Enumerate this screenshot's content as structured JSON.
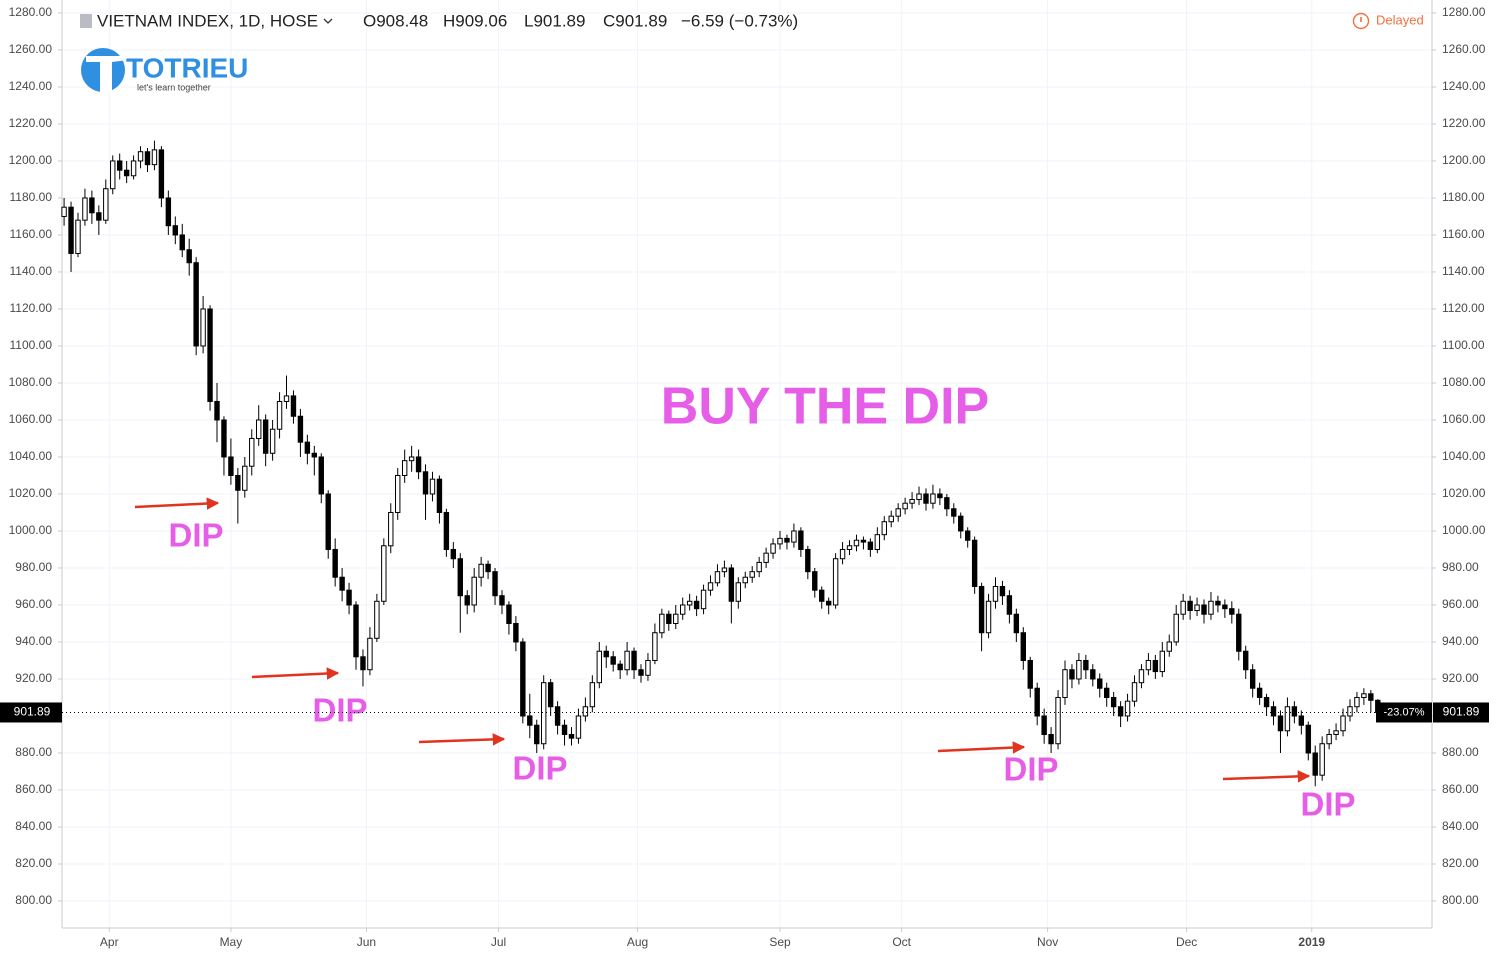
{
  "chart_data": {
    "type": "candlestick",
    "symbol": "VIETNAM INDEX, 1D, HOSE",
    "ohlc_legend": [
      "O908.48",
      "H909.06",
      "L901.89",
      "C901.89",
      "−6.59 (−0.73%)"
    ],
    "status": "Delayed",
    "logo": {
      "name": "TOTRIEU",
      "tagline": "let's learn together"
    },
    "title_annotation": "BUY THE DIP",
    "annotations": [
      "DIP",
      "DIP",
      "DIP",
      "DIP",
      "DIP"
    ],
    "last_price": {
      "value": 901.89,
      "label": "901.89"
    },
    "change_label": "-23.07%",
    "colors": {
      "up_body": "#ffffff",
      "down_body": "#000000",
      "wick": "#000000",
      "grid": "#f0f3fa",
      "arrow": "#e0341e"
    },
    "grid": true,
    "ylim": [
      785.4,
      1287
    ],
    "yticks": [
      {
        "value": 800,
        "label": "800.00"
      },
      {
        "value": 820,
        "label": "820.00"
      },
      {
        "value": 840,
        "label": "840.00"
      },
      {
        "value": 860,
        "label": "860.00"
      },
      {
        "value": 880,
        "label": "880.00"
      },
      {
        "value": 900,
        "label": "900.00"
      },
      {
        "value": 920,
        "label": "920.00"
      },
      {
        "value": 940,
        "label": "940.00"
      },
      {
        "value": 960,
        "label": "960.00"
      },
      {
        "value": 980,
        "label": "980.00"
      },
      {
        "value": 1000,
        "label": "1000.00"
      },
      {
        "value": 1020,
        "label": "1020.00"
      },
      {
        "value": 1040,
        "label": "1040.00"
      },
      {
        "value": 1060,
        "label": "1060.00"
      },
      {
        "value": 1080,
        "label": "1080.00"
      },
      {
        "value": 1100,
        "label": "1100.00"
      },
      {
        "value": 1120,
        "label": "1120.00"
      },
      {
        "value": 1140,
        "label": "1140.00"
      },
      {
        "value": 1160,
        "label": "1160.00"
      },
      {
        "value": 1180,
        "label": "1180.00"
      },
      {
        "value": 1200,
        "label": "1200.00"
      },
      {
        "value": 1220,
        "label": "1220.00"
      },
      {
        "value": 1240,
        "label": "1240.00"
      },
      {
        "value": 1260,
        "label": "1260.00"
      },
      {
        "value": 1280,
        "label": "1280.00"
      }
    ],
    "xlim": [
      -0.3,
      196.8
    ],
    "xticks": [
      {
        "value": 6.5,
        "label": "Apr"
      },
      {
        "value": 24,
        "label": "May"
      },
      {
        "value": 43.5,
        "label": "Jun"
      },
      {
        "value": 62.5,
        "label": "Jul"
      },
      {
        "value": 82.5,
        "label": "Aug"
      },
      {
        "value": 103,
        "label": "Sep"
      },
      {
        "value": 120.5,
        "label": "Oct"
      },
      {
        "value": 141.5,
        "label": "Nov"
      },
      {
        "value": 161.5,
        "label": "Dec"
      },
      {
        "value": 179.5,
        "label": "2019"
      }
    ],
    "ohlc": [
      [
        1170,
        1180,
        1165,
        1175
      ],
      [
        1175,
        1178,
        1140,
        1150
      ],
      [
        1150,
        1172,
        1148,
        1168
      ],
      [
        1168,
        1185,
        1165,
        1180
      ],
      [
        1180,
        1184,
        1166,
        1172
      ],
      [
        1172,
        1176,
        1160,
        1168
      ],
      [
        1168,
        1190,
        1166,
        1185
      ],
      [
        1185,
        1203,
        1182,
        1200
      ],
      [
        1200,
        1204,
        1190,
        1195
      ],
      [
        1195,
        1200,
        1188,
        1192
      ],
      [
        1192,
        1203,
        1190,
        1200
      ],
      [
        1200,
        1208,
        1196,
        1205
      ],
      [
        1205,
        1207,
        1194,
        1198
      ],
      [
        1198,
        1211,
        1195,
        1206
      ],
      [
        1206,
        1208,
        1175,
        1180
      ],
      [
        1180,
        1184,
        1160,
        1165
      ],
      [
        1165,
        1170,
        1155,
        1160
      ],
      [
        1160,
        1166,
        1148,
        1152
      ],
      [
        1152,
        1158,
        1138,
        1145
      ],
      [
        1145,
        1148,
        1095,
        1100
      ],
      [
        1100,
        1127,
        1096,
        1120
      ],
      [
        1120,
        1122,
        1065,
        1070
      ],
      [
        1070,
        1080,
        1048,
        1060
      ],
      [
        1060,
        1062,
        1030,
        1040
      ],
      [
        1040,
        1050,
        1025,
        1030
      ],
      [
        1030,
        1034,
        1004,
        1022
      ],
      [
        1022,
        1040,
        1018,
        1035
      ],
      [
        1035,
        1055,
        1030,
        1050
      ],
      [
        1050,
        1068,
        1046,
        1060
      ],
      [
        1060,
        1063,
        1035,
        1042
      ],
      [
        1042,
        1060,
        1038,
        1055
      ],
      [
        1055,
        1075,
        1050,
        1070
      ],
      [
        1070,
        1084,
        1066,
        1073
      ],
      [
        1073,
        1076,
        1058,
        1062
      ],
      [
        1062,
        1066,
        1040,
        1048
      ],
      [
        1048,
        1052,
        1036,
        1042
      ],
      [
        1042,
        1046,
        1030,
        1040
      ],
      [
        1040,
        1042,
        1015,
        1020
      ],
      [
        1020,
        1022,
        985,
        990
      ],
      [
        990,
        996,
        970,
        975
      ],
      [
        975,
        980,
        962,
        968
      ],
      [
        968,
        972,
        955,
        960
      ],
      [
        960,
        962,
        925,
        932
      ],
      [
        932,
        936,
        916,
        925
      ],
      [
        925,
        948,
        922,
        942
      ],
      [
        942,
        966,
        940,
        962
      ],
      [
        962,
        996,
        960,
        992
      ],
      [
        992,
        1015,
        988,
        1010
      ],
      [
        1010,
        1034,
        1006,
        1030
      ],
      [
        1030,
        1044,
        1026,
        1038
      ],
      [
        1038,
        1046,
        1032,
        1040
      ],
      [
        1040,
        1044,
        1028,
        1032
      ],
      [
        1032,
        1036,
        1006,
        1020
      ],
      [
        1020,
        1032,
        1016,
        1028
      ],
      [
        1028,
        1030,
        1004,
        1010
      ],
      [
        1010,
        1012,
        986,
        990
      ],
      [
        990,
        994,
        980,
        985
      ],
      [
        985,
        988,
        945,
        965
      ],
      [
        965,
        968,
        955,
        960
      ],
      [
        960,
        980,
        956,
        975
      ],
      [
        975,
        986,
        970,
        982
      ],
      [
        982,
        984,
        974,
        978
      ],
      [
        978,
        980,
        960,
        965
      ],
      [
        965,
        968,
        955,
        960
      ],
      [
        960,
        962,
        944,
        950
      ],
      [
        950,
        954,
        935,
        940
      ],
      [
        940,
        942,
        896,
        900
      ],
      [
        900,
        912,
        888,
        895
      ],
      [
        895,
        898,
        880,
        885
      ],
      [
        885,
        922,
        882,
        918
      ],
      [
        918,
        920,
        900,
        905
      ],
      [
        905,
        908,
        890,
        895
      ],
      [
        895,
        898,
        884,
        890
      ],
      [
        890,
        894,
        884,
        888
      ],
      [
        888,
        904,
        885,
        900
      ],
      [
        900,
        910,
        897,
        905
      ],
      [
        905,
        922,
        902,
        918
      ],
      [
        918,
        940,
        915,
        935
      ],
      [
        935,
        938,
        926,
        932
      ],
      [
        932,
        935,
        924,
        928
      ],
      [
        928,
        930,
        920,
        925
      ],
      [
        925,
        940,
        922,
        935
      ],
      [
        935,
        937,
        920,
        925
      ],
      [
        925,
        928,
        918,
        922
      ],
      [
        922,
        934,
        919,
        930
      ],
      [
        930,
        950,
        928,
        945
      ],
      [
        945,
        958,
        942,
        955
      ],
      [
        955,
        957,
        946,
        950
      ],
      [
        950,
        960,
        947,
        955
      ],
      [
        955,
        964,
        952,
        960
      ],
      [
        960,
        966,
        957,
        962
      ],
      [
        962,
        965,
        954,
        958
      ],
      [
        958,
        971,
        955,
        968
      ],
      [
        968,
        976,
        965,
        972
      ],
      [
        972,
        982,
        970,
        978
      ],
      [
        978,
        984,
        975,
        980
      ],
      [
        980,
        982,
        950,
        962
      ],
      [
        962,
        975,
        958,
        972
      ],
      [
        972,
        978,
        969,
        975
      ],
      [
        975,
        981,
        972,
        978
      ],
      [
        978,
        986,
        975,
        983
      ],
      [
        983,
        991,
        980,
        988
      ],
      [
        988,
        996,
        985,
        993
      ],
      [
        993,
        1000,
        990,
        996
      ],
      [
        996,
        998,
        990,
        994
      ],
      [
        994,
        1004,
        991,
        1000
      ],
      [
        1000,
        1002,
        986,
        990
      ],
      [
        990,
        992,
        974,
        978
      ],
      [
        978,
        980,
        964,
        968
      ],
      [
        968,
        970,
        958,
        962
      ],
      [
        962,
        964,
        955,
        960
      ],
      [
        960,
        988,
        958,
        985
      ],
      [
        985,
        994,
        982,
        990
      ],
      [
        990,
        995,
        987,
        992
      ],
      [
        992,
        998,
        989,
        995
      ],
      [
        995,
        997,
        990,
        994
      ],
      [
        994,
        996,
        986,
        990
      ],
      [
        990,
        1002,
        988,
        998
      ],
      [
        998,
        1008,
        995,
        1005
      ],
      [
        1005,
        1011,
        1002,
        1008
      ],
      [
        1008,
        1015,
        1005,
        1012
      ],
      [
        1012,
        1018,
        1009,
        1015
      ],
      [
        1015,
        1021,
        1012,
        1017
      ],
      [
        1017,
        1024,
        1014,
        1020
      ],
      [
        1020,
        1023,
        1011,
        1015
      ],
      [
        1015,
        1025,
        1012,
        1020
      ],
      [
        1020,
        1023,
        1014,
        1018
      ],
      [
        1018,
        1020,
        1008,
        1012
      ],
      [
        1012,
        1015,
        1004,
        1008
      ],
      [
        1008,
        1010,
        996,
        1000
      ],
      [
        1000,
        1002,
        991,
        995
      ],
      [
        995,
        997,
        966,
        970
      ],
      [
        970,
        972,
        935,
        945
      ],
      [
        945,
        966,
        942,
        962
      ],
      [
        962,
        975,
        958,
        970
      ],
      [
        970,
        973,
        960,
        965
      ],
      [
        965,
        968,
        950,
        955
      ],
      [
        955,
        958,
        940,
        945
      ],
      [
        945,
        948,
        925,
        930
      ],
      [
        930,
        932,
        910,
        915
      ],
      [
        915,
        918,
        895,
        900
      ],
      [
        900,
        904,
        885,
        890
      ],
      [
        890,
        894,
        880,
        885
      ],
      [
        885,
        914,
        882,
        910
      ],
      [
        910,
        930,
        906,
        925
      ],
      [
        925,
        928,
        915,
        920
      ],
      [
        920,
        934,
        917,
        930
      ],
      [
        930,
        933,
        920,
        925
      ],
      [
        925,
        928,
        916,
        920
      ],
      [
        920,
        923,
        910,
        915
      ],
      [
        915,
        918,
        905,
        910
      ],
      [
        910,
        913,
        900,
        905
      ],
      [
        905,
        908,
        894,
        900
      ],
      [
        900,
        912,
        897,
        908
      ],
      [
        908,
        922,
        905,
        918
      ],
      [
        918,
        928,
        915,
        925
      ],
      [
        925,
        934,
        922,
        930
      ],
      [
        930,
        933,
        920,
        924
      ],
      [
        924,
        940,
        921,
        935
      ],
      [
        935,
        944,
        932,
        940
      ],
      [
        940,
        960,
        938,
        955
      ],
      [
        955,
        966,
        952,
        962
      ],
      [
        962,
        965,
        952,
        957
      ],
      [
        957,
        964,
        954,
        960
      ],
      [
        960,
        963,
        950,
        955
      ],
      [
        955,
        967,
        952,
        962
      ],
      [
        962,
        965,
        956,
        960
      ],
      [
        960,
        963,
        953,
        958
      ],
      [
        958,
        962,
        950,
        955
      ],
      [
        955,
        958,
        930,
        935
      ],
      [
        935,
        938,
        920,
        925
      ],
      [
        925,
        928,
        910,
        915
      ],
      [
        915,
        918,
        906,
        910
      ],
      [
        910,
        912,
        900,
        905
      ],
      [
        905,
        908,
        895,
        900
      ],
      [
        900,
        903,
        880,
        892
      ],
      [
        892,
        910,
        889,
        905
      ],
      [
        905,
        908,
        896,
        900
      ],
      [
        900,
        903,
        890,
        895
      ],
      [
        895,
        897,
        876,
        880
      ],
      [
        880,
        884,
        862,
        868
      ],
      [
        868,
        889,
        865,
        885
      ],
      [
        885,
        893,
        882,
        890
      ],
      [
        890,
        896,
        887,
        892
      ],
      [
        892,
        904,
        889,
        900
      ],
      [
        900,
        909,
        897,
        905
      ],
      [
        905,
        913,
        902,
        910
      ],
      [
        910,
        915,
        906,
        912
      ],
      [
        912,
        914,
        902,
        908.48
      ],
      [
        908.48,
        909.06,
        901.89,
        901.89
      ]
    ]
  }
}
